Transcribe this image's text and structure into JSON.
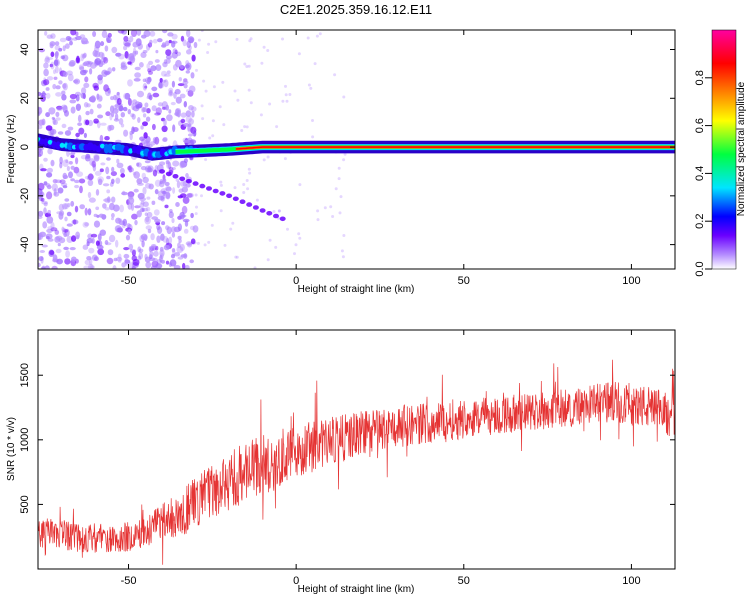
{
  "title": "C2E1.2025.359.16.12.E11",
  "chart_data": [
    {
      "type": "heatmap",
      "xlabel": "Height of straight line (km)",
      "ylabel": "Frequency (Hz)",
      "xlim": [
        -77,
        113
      ],
      "ylim": [
        -50,
        48
      ],
      "x_ticks": [
        -50,
        0,
        50,
        100
      ],
      "x_tick_labels": [
        "-50",
        "0",
        "50",
        "100"
      ],
      "y_ticks": [
        -40,
        -20,
        0,
        20,
        40
      ],
      "y_tick_labels": [
        "-40",
        "-20",
        "0",
        "20",
        "40"
      ],
      "colorbar": {
        "label": "Normalized spectral amplitude",
        "range": [
          0,
          1
        ],
        "ticks": [
          0.0,
          0.2,
          0.4,
          0.6,
          0.8
        ],
        "tick_labels": [
          "0.0",
          "0.2",
          "0.4",
          "0.6",
          "0.8"
        ],
        "colors": [
          "#ffffff",
          "#b48cff",
          "#6a00ff",
          "#0000ff",
          "#00e5ff",
          "#00ff40",
          "#ffff00",
          "#ff8000",
          "#ff0000",
          "#ff00a0"
        ]
      },
      "ridge": [
        {
          "x": -77,
          "y": 3
        },
        {
          "x": -70,
          "y": 1
        },
        {
          "x": -60,
          "y": 0
        },
        {
          "x": -50,
          "y": -1
        },
        {
          "x": -43,
          "y": -3
        },
        {
          "x": -36,
          "y": -2
        },
        {
          "x": -20,
          "y": -1
        },
        {
          "x": -10,
          "y": 0
        },
        {
          "x": 0,
          "y": 0
        },
        {
          "x": 113,
          "y": 0
        }
      ],
      "secondary_curve": [
        {
          "x": -40,
          "y": -10
        },
        {
          "x": -30,
          "y": -15
        },
        {
          "x": -20,
          "y": -20
        },
        {
          "x": -10,
          "y": -26
        },
        {
          "x": -3,
          "y": -30
        }
      ]
    },
    {
      "type": "line",
      "xlabel": "Height of straight line (km)",
      "ylabel": "SNR (10 * v/v)",
      "xlim": [
        -77,
        113
      ],
      "ylim": [
        0,
        1850
      ],
      "x_ticks": [
        -50,
        0,
        50,
        100
      ],
      "x_tick_labels": [
        "-50",
        "0",
        "50",
        "100"
      ],
      "y_ticks": [
        500,
        1000,
        1500
      ],
      "y_tick_labels": [
        "500",
        "1000",
        "1500"
      ],
      "series": [
        {
          "name": "SNR",
          "color": "#e53333",
          "trend_x": [
            -77,
            -65,
            -55,
            -45,
            -35,
            -25,
            -15,
            -5,
            5,
            15,
            25,
            35,
            45,
            55,
            65,
            75,
            85,
            95,
            105,
            113
          ],
          "trend_y": [
            280,
            250,
            230,
            280,
            420,
            600,
            750,
            850,
            950,
            1020,
            1080,
            1120,
            1150,
            1180,
            1200,
            1230,
            1260,
            1300,
            1250,
            1180
          ],
          "spread": [
            120,
            120,
            110,
            130,
            180,
            220,
            240,
            230,
            200,
            180,
            170,
            160,
            160,
            150,
            150,
            150,
            150,
            160,
            170,
            170
          ]
        }
      ]
    }
  ]
}
